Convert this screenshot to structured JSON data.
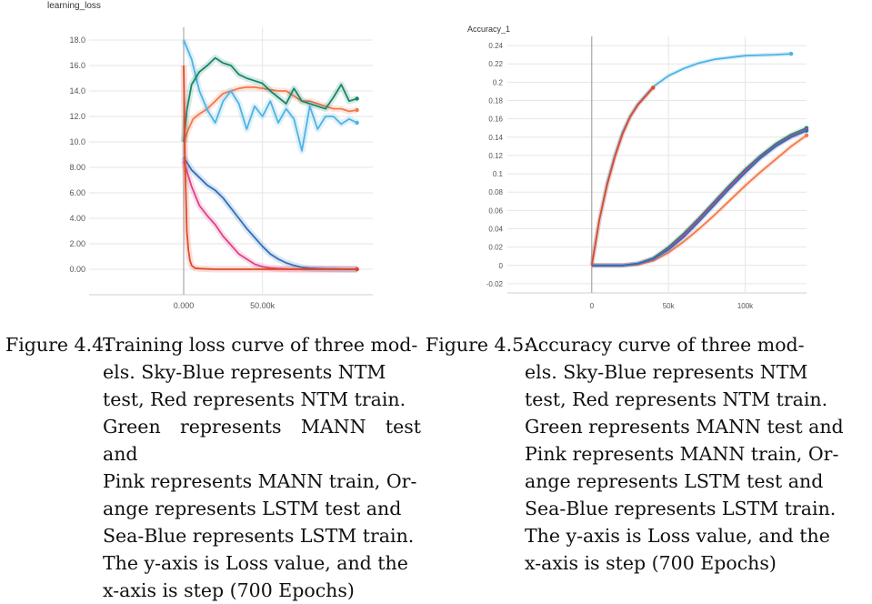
{
  "chart_data": [
    {
      "type": "line",
      "title": "learning_loss",
      "xlabel": "",
      "ylabel": "",
      "xlim": [
        -60000,
        120000
      ],
      "ylim": [
        -2,
        19
      ],
      "y_ticks": [
        "18.0",
        "16.0",
        "14.0",
        "12.0",
        "10.0",
        "8.00",
        "6.00",
        "4.00",
        "2.00",
        "0.00"
      ],
      "y_tick_values": [
        18,
        16,
        14,
        12,
        10,
        8,
        6,
        4,
        2,
        0
      ],
      "x_ticks": [
        "0.000",
        "50.00k"
      ],
      "x_tick_values": [
        0,
        50000
      ],
      "grid": true,
      "colors": {
        "NTM test": "#4fb3e3",
        "NTM train": "#e04a2a",
        "MANN test": "#16876a",
        "MANN train": "#e0408a",
        "LSTM test": "#f2784b",
        "LSTM train": "#2f6fba"
      },
      "series": [
        {
          "name": "Sky-Blue: NTM test",
          "x": [
            0,
            5000,
            10000,
            15000,
            20000,
            25000,
            30000,
            35000,
            40000,
            45000,
            50000,
            55000,
            60000,
            65000,
            70000,
            75000,
            80000,
            85000,
            90000,
            95000,
            100000,
            105000,
            110000
          ],
          "values": [
            18.0,
            16.5,
            14.0,
            12.5,
            11.5,
            13.2,
            14.0,
            13.0,
            11.0,
            12.8,
            12.0,
            13.2,
            11.5,
            12.6,
            11.8,
            9.3,
            12.8,
            11.0,
            12.0,
            12.0,
            11.4,
            11.8,
            11.5
          ]
        },
        {
          "name": "Red: NTM train",
          "x": [
            0,
            1000,
            2000,
            3000,
            4000,
            5000,
            7000,
            10000,
            20000,
            110000
          ],
          "values": [
            16.0,
            8.0,
            3.0,
            1.5,
            0.7,
            0.3,
            0.1,
            0.05,
            0.0,
            0.0
          ]
        },
        {
          "name": "Green: MANN test",
          "x": [
            0,
            2000,
            5000,
            10000,
            15000,
            20000,
            25000,
            30000,
            35000,
            40000,
            45000,
            50000,
            55000,
            60000,
            65000,
            70000,
            75000,
            80000,
            85000,
            90000,
            95000,
            100000,
            105000,
            110000
          ],
          "values": [
            10.0,
            12.5,
            14.5,
            15.5,
            16.0,
            16.6,
            16.2,
            16.0,
            15.3,
            15.0,
            14.8,
            14.6,
            14.0,
            13.5,
            13.0,
            14.2,
            13.2,
            13.0,
            12.8,
            12.6,
            13.5,
            14.5,
            13.2,
            13.4
          ]
        },
        {
          "name": "Pink: MANN train",
          "x": [
            0,
            5000,
            10000,
            15000,
            20000,
            25000,
            30000,
            35000,
            40000,
            45000,
            50000,
            55000,
            60000,
            65000,
            70000,
            110000
          ],
          "values": [
            8.5,
            6.5,
            5.0,
            4.2,
            3.5,
            2.6,
            1.9,
            1.2,
            0.8,
            0.4,
            0.2,
            0.1,
            0.05,
            0.02,
            0.0,
            0.0
          ]
        },
        {
          "name": "Orange: LSTM test",
          "x": [
            0,
            3000,
            6000,
            10000,
            15000,
            20000,
            25000,
            30000,
            35000,
            40000,
            45000,
            50000,
            55000,
            60000,
            65000,
            70000,
            75000,
            80000,
            85000,
            90000,
            95000,
            100000,
            105000,
            110000
          ],
          "values": [
            10.0,
            11.0,
            11.8,
            12.2,
            12.6,
            13.2,
            13.8,
            14.0,
            14.2,
            14.3,
            14.3,
            14.2,
            14.1,
            14.0,
            14.0,
            13.6,
            13.2,
            13.2,
            13.0,
            12.8,
            12.6,
            12.6,
            12.4,
            12.5
          ]
        },
        {
          "name": "Sea-Blue: LSTM train",
          "x": [
            0,
            5000,
            10000,
            15000,
            20000,
            25000,
            30000,
            35000,
            40000,
            45000,
            50000,
            55000,
            60000,
            65000,
            70000,
            75000,
            80000,
            85000,
            90000,
            95000,
            100000,
            105000,
            110000
          ],
          "values": [
            8.8,
            7.8,
            7.2,
            6.6,
            6.2,
            5.6,
            4.8,
            4.0,
            3.2,
            2.5,
            1.8,
            1.2,
            0.8,
            0.5,
            0.3,
            0.15,
            0.08,
            0.05,
            0.03,
            0.02,
            0.01,
            0.0,
            0.0
          ]
        }
      ]
    },
    {
      "type": "line",
      "title": "Accuracy_1",
      "xlabel": "",
      "ylabel": "",
      "xlim": [
        -55000,
        140000
      ],
      "ylim": [
        -0.03,
        0.25
      ],
      "y_ticks": [
        "0.24",
        "0.22",
        "0.2",
        "0.18",
        "0.16",
        "0.14",
        "0.12",
        "0.1",
        "0.08",
        "0.06",
        "0.04",
        "0.02",
        "0",
        "-0.02"
      ],
      "y_tick_values": [
        0.24,
        0.22,
        0.2,
        0.18,
        0.16,
        0.14,
        0.12,
        0.1,
        0.08,
        0.06,
        0.04,
        0.02,
        0,
        -0.02
      ],
      "x_ticks": [
        "0",
        "50k",
        "100k"
      ],
      "x_tick_values": [
        0,
        50000,
        100000
      ],
      "grid": true,
      "colors": {
        "NTM test": "#4fb3e3",
        "NTM train": "#e04a2a",
        "MANN test": "#16876a",
        "MANN train": "#e0408a",
        "LSTM test": "#f2784b",
        "LSTM train": "#2f6fba"
      },
      "series": [
        {
          "name": "Sky-Blue: NTM test",
          "x": [
            0,
            5000,
            10000,
            15000,
            20000,
            25000,
            30000,
            40000,
            50000,
            60000,
            70000,
            80000,
            90000,
            100000,
            110000,
            120000,
            130000
          ],
          "values": [
            0,
            0.05,
            0.09,
            0.12,
            0.145,
            0.163,
            0.176,
            0.195,
            0.207,
            0.215,
            0.221,
            0.225,
            0.227,
            0.229,
            0.2295,
            0.23,
            0.231
          ]
        },
        {
          "name": "Red: NTM train",
          "x": [
            0,
            5000,
            10000,
            15000,
            20000,
            25000,
            30000,
            40000
          ],
          "values": [
            0,
            0.05,
            0.088,
            0.118,
            0.143,
            0.162,
            0.175,
            0.194
          ]
        },
        {
          "name": "Green: MANN test",
          "x": [
            0,
            20000,
            30000,
            40000,
            50000,
            60000,
            70000,
            80000,
            90000,
            100000,
            110000,
            120000,
            130000,
            140000
          ],
          "values": [
            0,
            0,
            0.002,
            0.008,
            0.02,
            0.035,
            0.052,
            0.07,
            0.088,
            0.105,
            0.12,
            0.133,
            0.143,
            0.15
          ]
        },
        {
          "name": "Pink: MANN train",
          "x": [
            0,
            20000,
            30000,
            40000,
            50000,
            60000,
            70000,
            80000,
            90000,
            100000,
            110000,
            120000,
            130000,
            140000
          ],
          "values": [
            0,
            0,
            0.002,
            0.007,
            0.018,
            0.033,
            0.05,
            0.068,
            0.086,
            0.103,
            0.118,
            0.131,
            0.141,
            0.148
          ]
        },
        {
          "name": "Orange: LSTM test",
          "x": [
            0,
            20000,
            30000,
            40000,
            50000,
            60000,
            70000,
            80000,
            90000,
            100000,
            110000,
            120000,
            130000,
            140000
          ],
          "values": [
            0,
            0,
            0.001,
            0.005,
            0.014,
            0.026,
            0.04,
            0.055,
            0.071,
            0.087,
            0.102,
            0.116,
            0.13,
            0.142
          ]
        },
        {
          "name": "Sea-Blue: LSTM train",
          "x": [
            0,
            20000,
            30000,
            40000,
            50000,
            60000,
            70000,
            80000,
            90000,
            100000,
            110000,
            120000,
            130000,
            140000
          ],
          "values": [
            0,
            0,
            0.002,
            0.007,
            0.017,
            0.031,
            0.048,
            0.066,
            0.084,
            0.101,
            0.117,
            0.13,
            0.14,
            0.147
          ]
        }
      ]
    }
  ],
  "captions": {
    "left": {
      "prefix": "Figure 4.4:",
      "lines": [
        "Training loss curve of three mod-",
        "els.  Sky-Blue represents NTM",
        "test, Red represents NTM train.",
        "Green represents MANN test and",
        "Pink represents MANN train, Or-",
        "ange represents LSTM test and",
        "Sea-Blue represents LSTM train.",
        "The y-axis is Loss value, and the",
        "x-axis is step (700 Epochs)"
      ]
    },
    "right": {
      "prefix": "Figure 4.5:",
      "lines": [
        "Accuracy  curve  of  three  mod-",
        "els.  Sky-Blue represents NTM",
        "test, Red represents NTM train.",
        "Green represents MANN test and",
        "Pink represents MANN train, Or-",
        "ange represents LSTM test and",
        "Sea-Blue represents LSTM train.",
        "The y-axis is Loss value, and the",
        "x-axis is step (700 Epochs)"
      ]
    }
  }
}
